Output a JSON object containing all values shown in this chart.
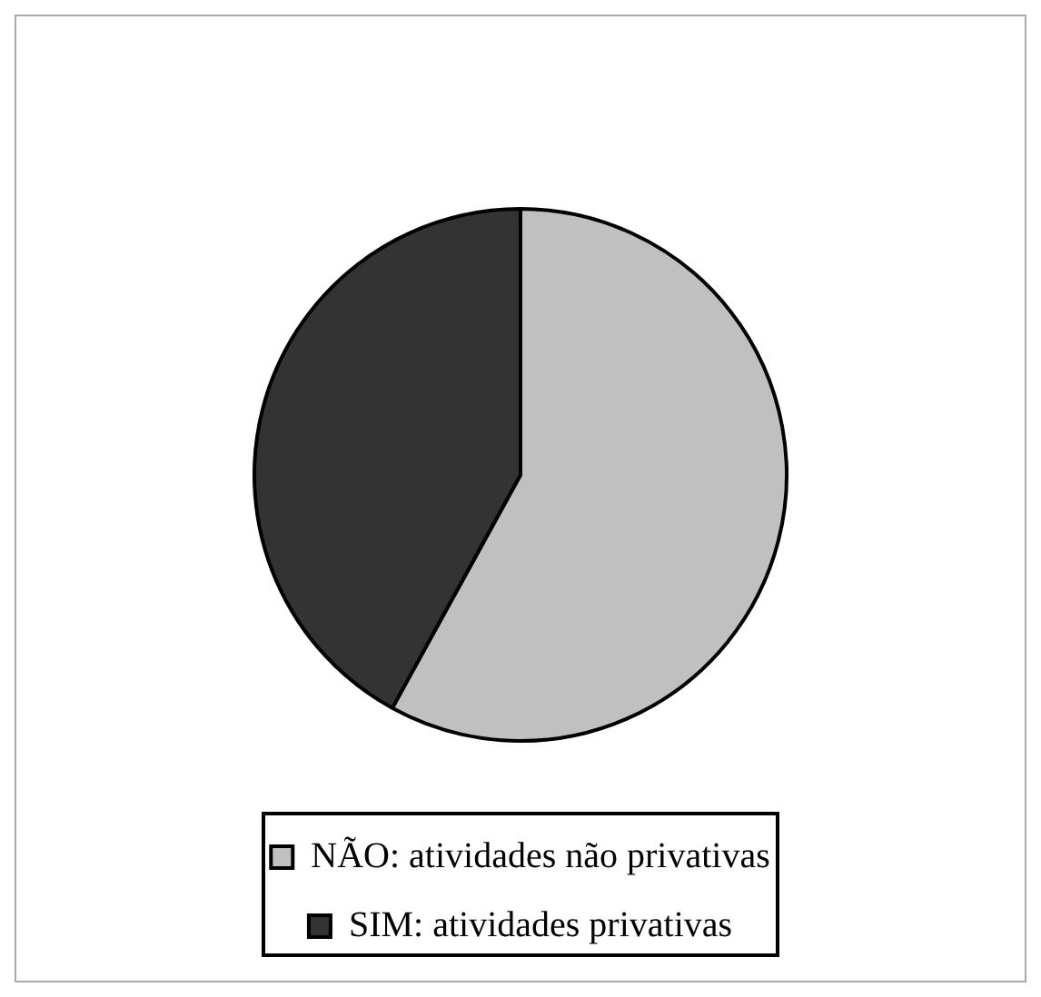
{
  "chart_data": {
    "type": "pie",
    "categories": [
      "NÃO: atividades não privativas",
      "SIM: atividades privativas"
    ],
    "values": [
      58,
      42
    ],
    "colors": [
      "#c0c0c0",
      "#333333"
    ],
    "legend": "bottom"
  }
}
